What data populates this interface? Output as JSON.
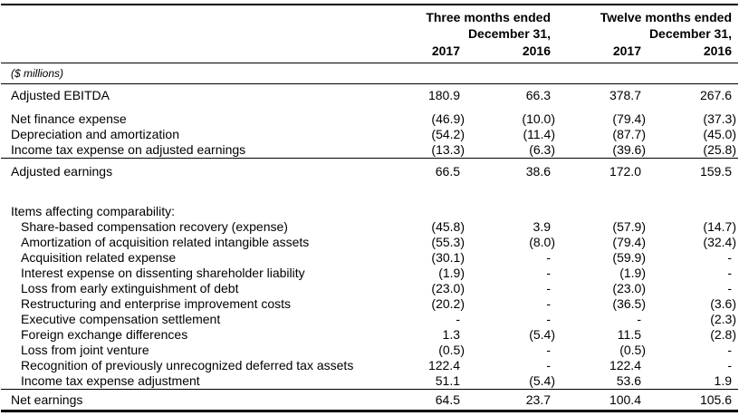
{
  "table": {
    "unit_note": "($ millions)",
    "col_groups": [
      {
        "line1": "Three months ended",
        "line2": "December 31,"
      },
      {
        "line1": "Twelve months ended",
        "line2": "December 31,"
      }
    ],
    "year_headers": [
      "2017",
      "2016",
      "2017",
      "2016"
    ],
    "rows": [
      {
        "label": "Adjusted EBITDA",
        "values": [
          "180.9",
          "66.3",
          "378.7",
          "267.6"
        ],
        "first": true
      },
      {
        "label": "Net finance expense",
        "values": [
          "(46.9)",
          "(10.0)",
          "(79.4)",
          "(37.3)"
        ],
        "gap_above": true
      },
      {
        "label": "Depreciation and amortization",
        "values": [
          "(54.2)",
          "(11.4)",
          "(87.7)",
          "(45.0)"
        ]
      },
      {
        "label": "Income tax expense on adjusted earnings",
        "values": [
          "(13.3)",
          "(6.3)",
          "(39.6)",
          "(25.8)"
        ],
        "rule_below": true
      },
      {
        "label": "Adjusted earnings",
        "values": [
          "66.5",
          "38.6",
          "172.0",
          "159.5"
        ],
        "gap_above": true
      },
      {
        "label": "",
        "values": [
          "",
          "",
          "",
          ""
        ],
        "spacer": true
      },
      {
        "label": "Items affecting comparability:",
        "values": [
          "",
          "",
          "",
          ""
        ]
      },
      {
        "label": "Share-based compensation recovery (expense)",
        "values": [
          "(45.8)",
          "3.9",
          "(57.9)",
          "(14.7)"
        ],
        "indent": true
      },
      {
        "label": "Amortization of acquisition related intangible assets",
        "values": [
          "(55.3)",
          "(8.0)",
          "(79.4)",
          "(32.4)"
        ],
        "indent": true
      },
      {
        "label": "Acquisition related expense",
        "values": [
          "(30.1)",
          "-",
          "(59.9)",
          "-"
        ],
        "indent": true
      },
      {
        "label": "Interest expense on dissenting shareholder liability",
        "values": [
          "(1.9)",
          "-",
          "(1.9)",
          "-"
        ],
        "indent": true
      },
      {
        "label": "Loss from early extinguishment of debt",
        "values": [
          "(23.0)",
          "-",
          "(23.0)",
          "-"
        ],
        "indent": true
      },
      {
        "label": "Restructuring and enterprise improvement costs",
        "values": [
          "(20.2)",
          "-",
          "(36.5)",
          "(3.6)"
        ],
        "indent": true
      },
      {
        "label": "Executive compensation settlement",
        "values": [
          "-",
          "-",
          "-",
          "(2.3)"
        ],
        "indent": true
      },
      {
        "label": "Foreign exchange differences",
        "values": [
          "1.3",
          "(5.4)",
          "11.5",
          "(2.8)"
        ],
        "indent": true
      },
      {
        "label": "Loss from joint venture",
        "values": [
          "(0.5)",
          "-",
          "(0.5)",
          "-"
        ],
        "indent": true
      },
      {
        "label": "Recognition of previously unrecognized deferred tax assets",
        "values": [
          "122.4",
          "-",
          "122.4",
          "-"
        ],
        "indent": true
      },
      {
        "label": "Income tax expense adjustment",
        "values": [
          "51.1",
          "(5.4)",
          "53.6",
          "1.9"
        ],
        "indent": true,
        "rule_below": true
      },
      {
        "label": "Net earnings",
        "values": [
          "64.5",
          "23.7",
          "100.4",
          "105.6"
        ],
        "last": true
      }
    ]
  },
  "colors": {
    "text": "#000000",
    "background": "#ffffff",
    "rule": "#000000"
  }
}
